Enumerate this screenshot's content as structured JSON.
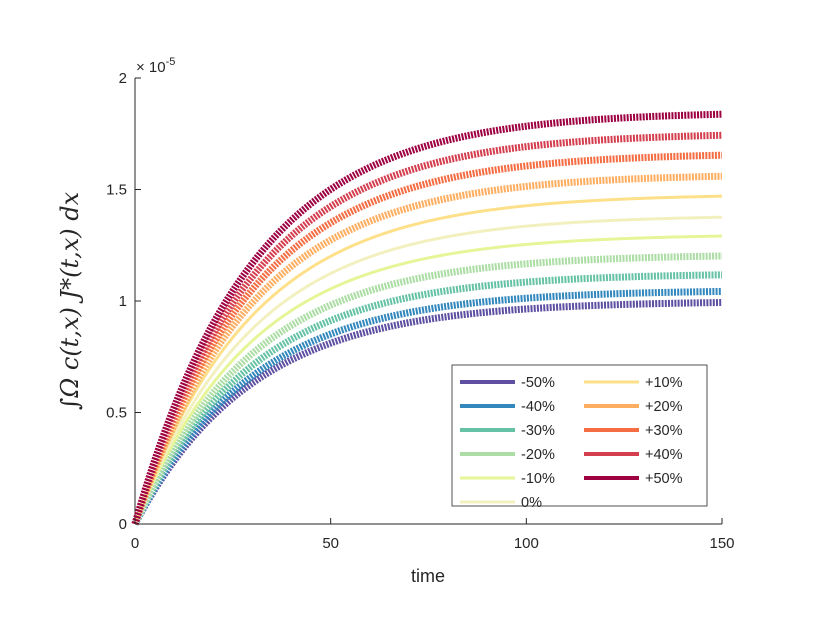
{
  "chart_data": {
    "type": "line",
    "xlabel": "time",
    "ylabel": "∫Ω c(t,x) J*(t,x) dx",
    "y_exponent": "× 10",
    "y_exponent_power": "-5",
    "xlim": [
      0,
      150
    ],
    "ylim": [
      0,
      2
    ],
    "x_ticks": [
      0,
      50,
      100,
      150
    ],
    "x_tick_labels": [
      "0",
      "50",
      "100",
      "150"
    ],
    "y_ticks": [
      0,
      0.5,
      1,
      1.5,
      2
    ],
    "y_tick_labels": [
      "0",
      "0.5",
      "1",
      "1.5",
      "2"
    ],
    "grid": false,
    "legend_position": "bottom-right",
    "time_constant": 30,
    "series": [
      {
        "name": "-50%",
        "final": 1.0,
        "color": "#5e4fa2",
        "thick": true
      },
      {
        "name": "-40%",
        "final": 1.05,
        "color": "#3288bd",
        "thick": true
      },
      {
        "name": "-30%",
        "final": 1.125,
        "color": "#66c2a5",
        "thick": true
      },
      {
        "name": "-20%",
        "final": 1.21,
        "color": "#abdda4",
        "thick": true
      },
      {
        "name": "-10%",
        "final": 1.3,
        "color": "#e6f598",
        "thick": false
      },
      {
        "name": "0%",
        "final": 1.385,
        "color": "#f3f0c0",
        "thick": false
      },
      {
        "name": "+10%",
        "final": 1.48,
        "color": "#fee08b",
        "thick": false
      },
      {
        "name": "+20%",
        "final": 1.57,
        "color": "#fdae61",
        "thick": true
      },
      {
        "name": "+30%",
        "final": 1.665,
        "color": "#f46d43",
        "thick": true
      },
      {
        "name": "+40%",
        "final": 1.755,
        "color": "#d53e4f",
        "thick": true
      },
      {
        "name": "+50%",
        "final": 1.85,
        "color": "#9e0142",
        "thick": true
      }
    ]
  }
}
